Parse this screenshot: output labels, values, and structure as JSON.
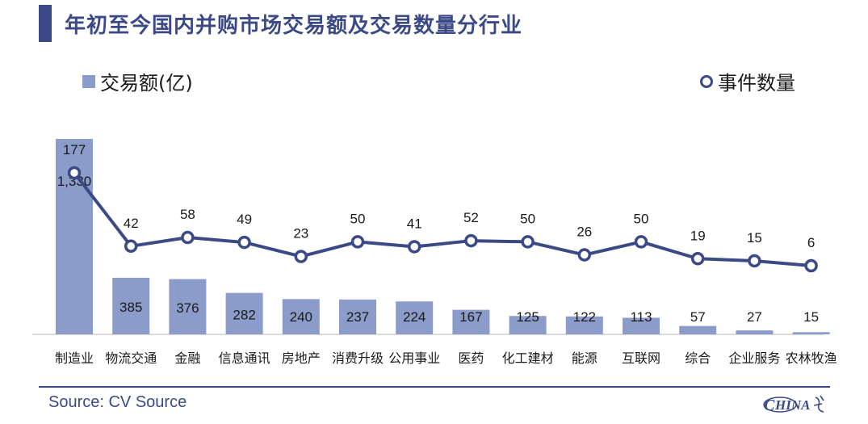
{
  "title": "年初至今国内并购市场交易额及交易数量分行业",
  "legend": {
    "bars": "交易额(亿)",
    "line": "事件数量"
  },
  "footer": {
    "source": "Source: CV Source",
    "logo_text": "HINA"
  },
  "colors": {
    "bar": "#8c9cca",
    "line": "#3b4a86",
    "title": "#3b4a86"
  },
  "chart_data": {
    "type": "bar",
    "categories": [
      "制造业",
      "物流交通",
      "金融",
      "信息通讯",
      "房地产",
      "消费升级",
      "公用事业",
      "医药",
      "化工建材",
      "能源",
      "互联网",
      "综合",
      "企业服务",
      "农林牧渔"
    ],
    "series": [
      {
        "name": "交易额(亿)",
        "type": "bar",
        "values": [
          1330,
          385,
          376,
          282,
          240,
          237,
          224,
          167,
          125,
          122,
          113,
          57,
          27,
          15
        ],
        "labels": [
          "1,330",
          "385",
          "376",
          "282",
          "240",
          "237",
          "224",
          "167",
          "125",
          "122",
          "113",
          "57",
          "27",
          "15"
        ]
      },
      {
        "name": "事件数量",
        "type": "line",
        "values": [
          177,
          42,
          58,
          49,
          23,
          50,
          41,
          52,
          50,
          26,
          50,
          19,
          15,
          6
        ],
        "labels": [
          "177",
          "42",
          "58",
          "49",
          "23",
          "50",
          "41",
          "52",
          "50",
          "26",
          "50",
          "19",
          "15",
          "6"
        ]
      }
    ],
    "title": "年初至今国内并购市场交易额及交易数量分行业",
    "legend_position": "top",
    "grid": false
  }
}
